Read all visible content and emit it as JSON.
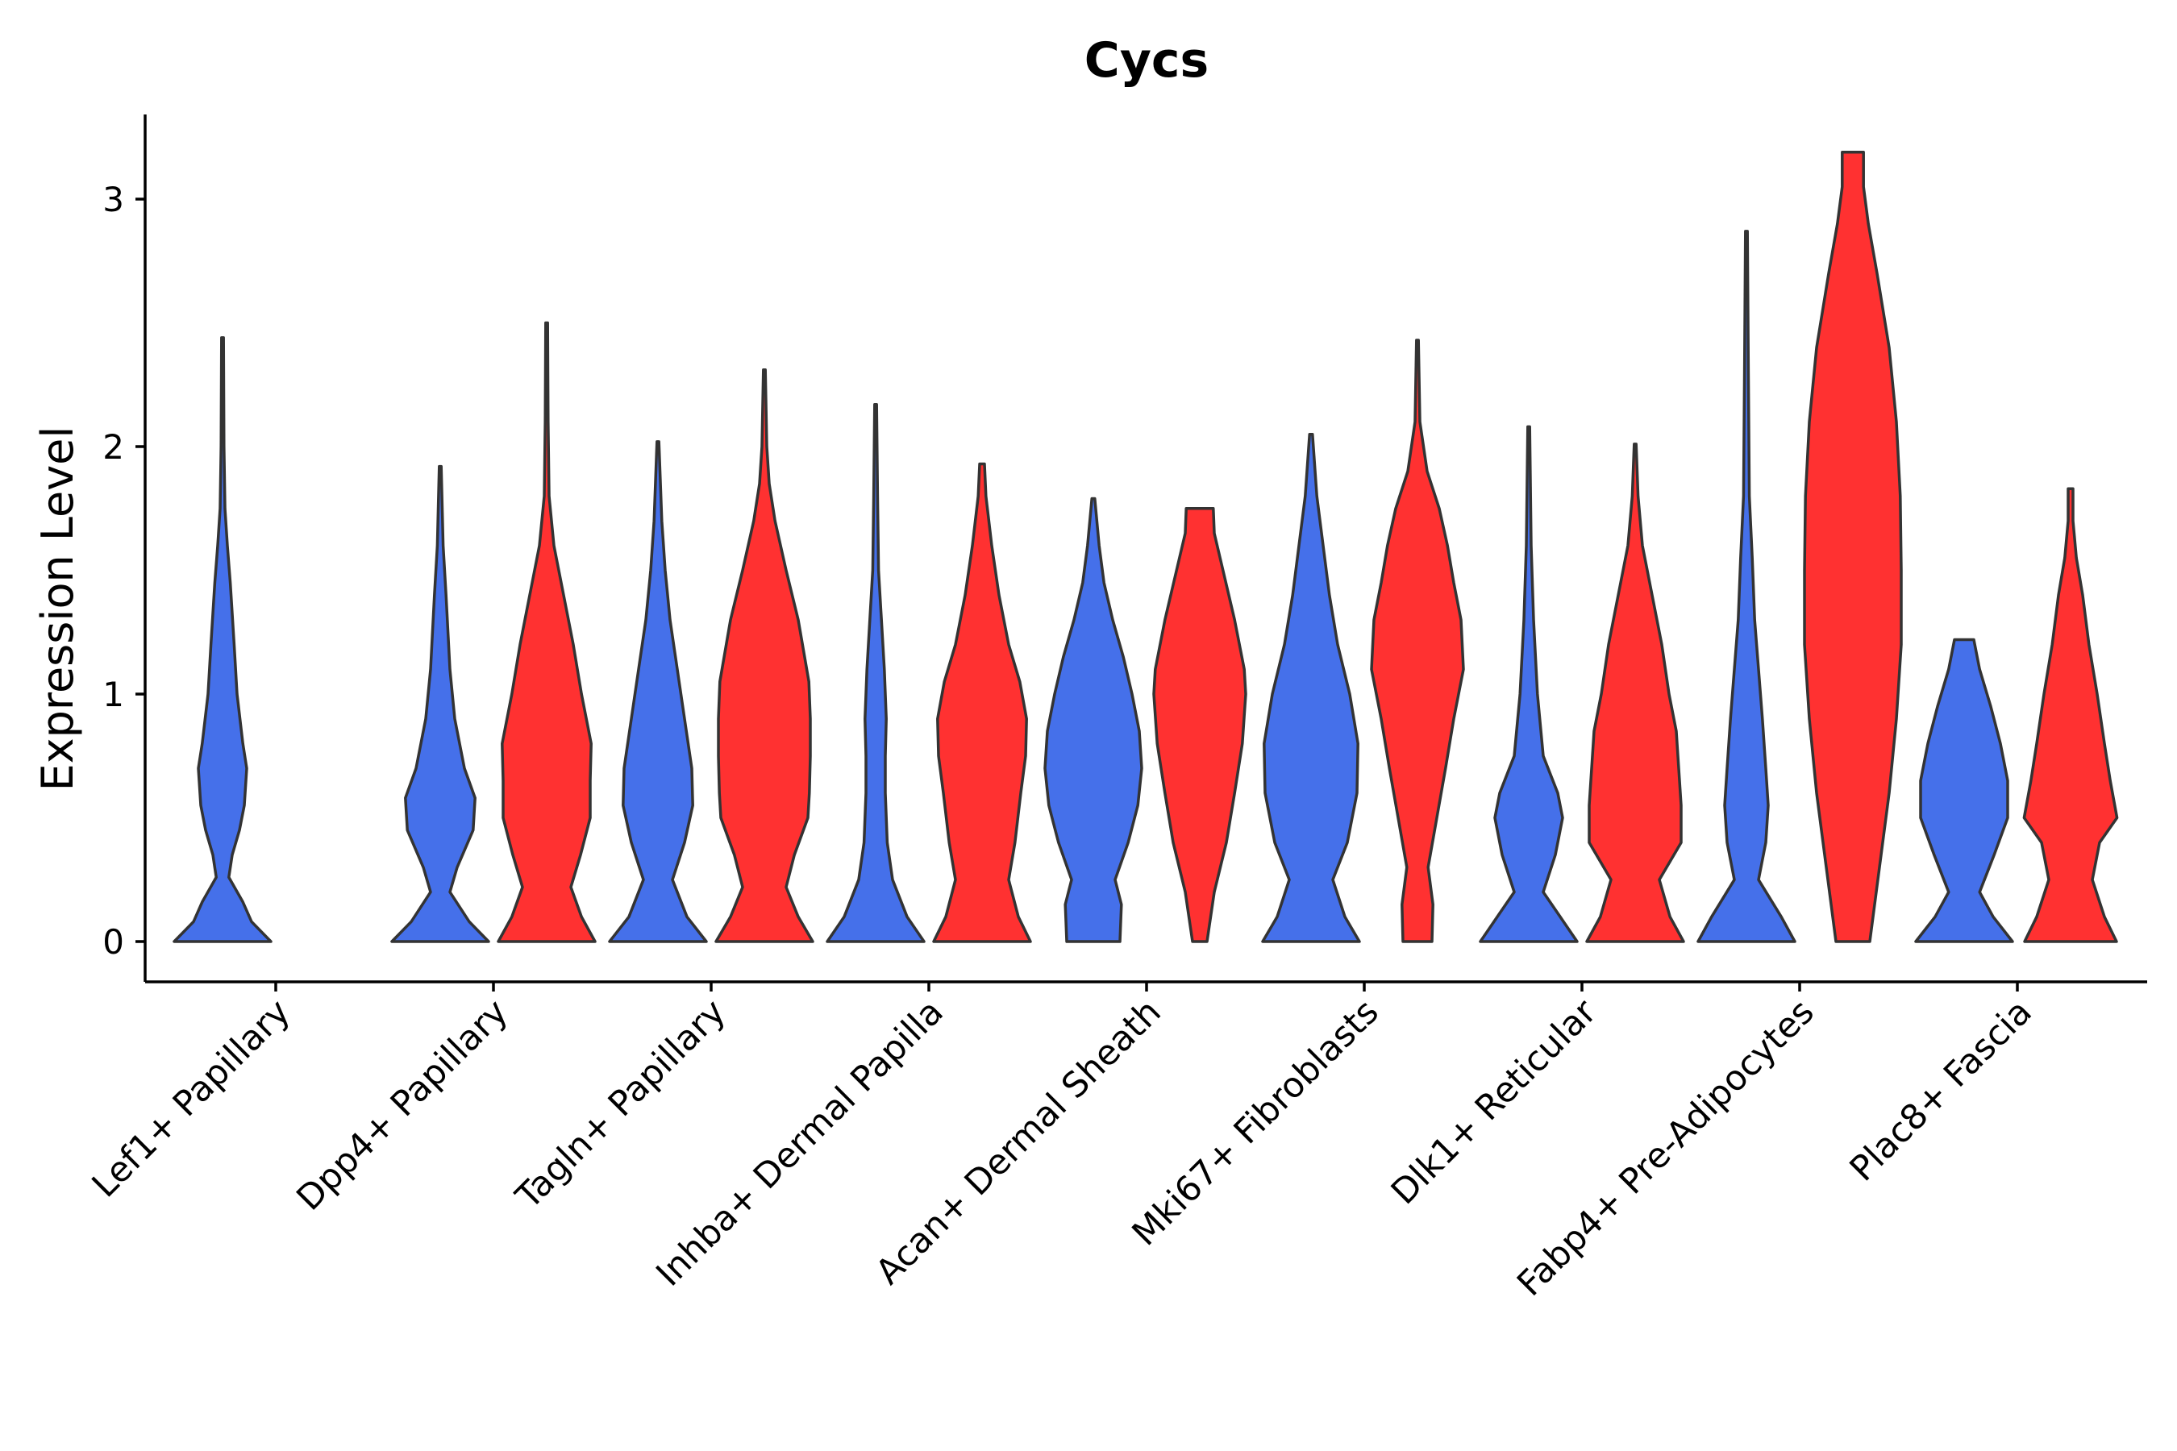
{
  "chart_data": {
    "type": "violin",
    "title": "Cycs",
    "xlabel": "",
    "ylabel": "Expression Level",
    "ylim": [
      -0.16,
      3.35
    ],
    "yticks": [
      0,
      1,
      2,
      3
    ],
    "categories": [
      "Lef1+ Papillary",
      "Dpp4+ Papillary",
      "Tagln+ Papillary",
      "Inhba+ Dermal Papilla",
      "Acan+ Dermal Sheath",
      "Mki67+ Fibroblasts",
      "Dlk1+ Reticular",
      "Fabp4+ Pre-Adipocytes",
      "Plac8+ Fascia"
    ],
    "series_colors": {
      "group_1": "#4570EA",
      "group_2": "#FF3131"
    },
    "violins": [
      {
        "category": 0,
        "group": "group_1",
        "max": 2.44,
        "profile": [
          [
            0.0,
            1.0
          ],
          [
            0.08,
            0.6
          ],
          [
            0.16,
            0.42
          ],
          [
            0.26,
            0.13
          ],
          [
            0.35,
            0.2
          ],
          [
            0.45,
            0.35
          ],
          [
            0.55,
            0.45
          ],
          [
            0.7,
            0.5
          ],
          [
            0.8,
            0.42
          ],
          [
            1.0,
            0.3
          ],
          [
            1.2,
            0.24
          ],
          [
            1.45,
            0.16
          ],
          [
            1.6,
            0.1
          ],
          [
            1.75,
            0.05
          ],
          [
            2.0,
            0.03
          ],
          [
            2.44,
            0.02
          ]
        ]
      },
      {
        "category": 1,
        "group": "group_1",
        "max": 1.92,
        "profile": [
          [
            0.0,
            1.0
          ],
          [
            0.08,
            0.6
          ],
          [
            0.2,
            0.2
          ],
          [
            0.3,
            0.35
          ],
          [
            0.45,
            0.68
          ],
          [
            0.58,
            0.72
          ],
          [
            0.7,
            0.5
          ],
          [
            0.9,
            0.3
          ],
          [
            1.1,
            0.2
          ],
          [
            1.4,
            0.12
          ],
          [
            1.6,
            0.06
          ],
          [
            1.92,
            0.02
          ]
        ]
      },
      {
        "category": 1,
        "group": "group_2",
        "max": 2.5,
        "profile": [
          [
            0.0,
            1.0
          ],
          [
            0.1,
            0.72
          ],
          [
            0.22,
            0.5
          ],
          [
            0.35,
            0.7
          ],
          [
            0.5,
            0.9
          ],
          [
            0.65,
            0.9
          ],
          [
            0.8,
            0.92
          ],
          [
            1.0,
            0.72
          ],
          [
            1.2,
            0.55
          ],
          [
            1.4,
            0.35
          ],
          [
            1.6,
            0.15
          ],
          [
            1.8,
            0.05
          ],
          [
            2.1,
            0.03
          ],
          [
            2.5,
            0.02
          ]
        ]
      },
      {
        "category": 2,
        "group": "group_1",
        "max": 2.02,
        "profile": [
          [
            0.0,
            1.0
          ],
          [
            0.1,
            0.6
          ],
          [
            0.25,
            0.3
          ],
          [
            0.4,
            0.55
          ],
          [
            0.55,
            0.72
          ],
          [
            0.7,
            0.7
          ],
          [
            0.9,
            0.55
          ],
          [
            1.1,
            0.4
          ],
          [
            1.3,
            0.25
          ],
          [
            1.5,
            0.15
          ],
          [
            1.7,
            0.08
          ],
          [
            2.02,
            0.02
          ]
        ]
      },
      {
        "category": 2,
        "group": "group_2",
        "max": 2.31,
        "profile": [
          [
            0.0,
            1.0
          ],
          [
            0.1,
            0.7
          ],
          [
            0.22,
            0.45
          ],
          [
            0.35,
            0.62
          ],
          [
            0.5,
            0.9
          ],
          [
            0.6,
            0.93
          ],
          [
            0.75,
            0.95
          ],
          [
            0.9,
            0.95
          ],
          [
            1.05,
            0.92
          ],
          [
            1.3,
            0.7
          ],
          [
            1.5,
            0.45
          ],
          [
            1.7,
            0.22
          ],
          [
            1.85,
            0.1
          ],
          [
            2.0,
            0.05
          ],
          [
            2.31,
            0.02
          ]
        ]
      },
      {
        "category": 3,
        "group": "group_1",
        "max": 2.17,
        "profile": [
          [
            0.0,
            1.0
          ],
          [
            0.1,
            0.65
          ],
          [
            0.25,
            0.35
          ],
          [
            0.4,
            0.24
          ],
          [
            0.6,
            0.2
          ],
          [
            0.75,
            0.2
          ],
          [
            0.9,
            0.22
          ],
          [
            1.1,
            0.18
          ],
          [
            1.3,
            0.12
          ],
          [
            1.5,
            0.06
          ],
          [
            1.8,
            0.04
          ],
          [
            2.17,
            0.02
          ]
        ]
      },
      {
        "category": 3,
        "group": "group_2",
        "max": 1.93,
        "profile": [
          [
            0.0,
            1.0
          ],
          [
            0.1,
            0.75
          ],
          [
            0.25,
            0.55
          ],
          [
            0.4,
            0.68
          ],
          [
            0.6,
            0.8
          ],
          [
            0.75,
            0.9
          ],
          [
            0.9,
            0.92
          ],
          [
            1.05,
            0.78
          ],
          [
            1.2,
            0.55
          ],
          [
            1.4,
            0.35
          ],
          [
            1.6,
            0.2
          ],
          [
            1.8,
            0.08
          ],
          [
            1.93,
            0.05
          ]
        ]
      },
      {
        "category": 4,
        "group": "group_1",
        "max": 1.79,
        "profile": [
          [
            0.0,
            0.55
          ],
          [
            0.15,
            0.58
          ],
          [
            0.25,
            0.45
          ],
          [
            0.4,
            0.72
          ],
          [
            0.55,
            0.92
          ],
          [
            0.7,
            1.0
          ],
          [
            0.85,
            0.95
          ],
          [
            1.0,
            0.8
          ],
          [
            1.15,
            0.62
          ],
          [
            1.3,
            0.4
          ],
          [
            1.45,
            0.22
          ],
          [
            1.6,
            0.12
          ],
          [
            1.79,
            0.03
          ]
        ]
      },
      {
        "category": 4,
        "group": "group_2",
        "max": 1.75,
        "profile": [
          [
            0.0,
            0.15
          ],
          [
            0.2,
            0.3
          ],
          [
            0.4,
            0.55
          ],
          [
            0.6,
            0.72
          ],
          [
            0.8,
            0.88
          ],
          [
            1.0,
            0.95
          ],
          [
            1.1,
            0.92
          ],
          [
            1.3,
            0.72
          ],
          [
            1.5,
            0.48
          ],
          [
            1.65,
            0.3
          ],
          [
            1.75,
            0.28
          ]
        ]
      },
      {
        "category": 5,
        "group": "group_1",
        "max": 2.05,
        "profile": [
          [
            0.0,
            1.0
          ],
          [
            0.1,
            0.7
          ],
          [
            0.25,
            0.45
          ],
          [
            0.4,
            0.75
          ],
          [
            0.6,
            0.95
          ],
          [
            0.8,
            0.97
          ],
          [
            1.0,
            0.8
          ],
          [
            1.2,
            0.55
          ],
          [
            1.4,
            0.38
          ],
          [
            1.6,
            0.25
          ],
          [
            1.8,
            0.12
          ],
          [
            2.05,
            0.03
          ]
        ]
      },
      {
        "category": 5,
        "group": "group_2",
        "max": 2.43,
        "profile": [
          [
            0.0,
            0.3
          ],
          [
            0.15,
            0.32
          ],
          [
            0.3,
            0.22
          ],
          [
            0.5,
            0.4
          ],
          [
            0.7,
            0.58
          ],
          [
            0.9,
            0.75
          ],
          [
            1.1,
            0.95
          ],
          [
            1.3,
            0.9
          ],
          [
            1.45,
            0.75
          ],
          [
            1.6,
            0.62
          ],
          [
            1.75,
            0.45
          ],
          [
            1.9,
            0.2
          ],
          [
            2.1,
            0.05
          ],
          [
            2.43,
            0.02
          ]
        ]
      },
      {
        "category": 6,
        "group": "group_1",
        "max": 2.08,
        "profile": [
          [
            0.0,
            1.0
          ],
          [
            0.1,
            0.65
          ],
          [
            0.2,
            0.3
          ],
          [
            0.35,
            0.55
          ],
          [
            0.5,
            0.7
          ],
          [
            0.6,
            0.6
          ],
          [
            0.75,
            0.3
          ],
          [
            1.0,
            0.18
          ],
          [
            1.3,
            0.1
          ],
          [
            1.6,
            0.05
          ],
          [
            2.08,
            0.02
          ]
        ]
      },
      {
        "category": 6,
        "group": "group_2",
        "max": 2.01,
        "profile": [
          [
            0.0,
            1.0
          ],
          [
            0.1,
            0.72
          ],
          [
            0.25,
            0.5
          ],
          [
            0.4,
            0.95
          ],
          [
            0.55,
            0.95
          ],
          [
            0.7,
            0.9
          ],
          [
            0.85,
            0.85
          ],
          [
            1.0,
            0.7
          ],
          [
            1.2,
            0.55
          ],
          [
            1.4,
            0.35
          ],
          [
            1.6,
            0.15
          ],
          [
            1.8,
            0.06
          ],
          [
            2.01,
            0.02
          ]
        ]
      },
      {
        "category": 7,
        "group": "group_1",
        "max": 2.87,
        "profile": [
          [
            0.0,
            1.0
          ],
          [
            0.1,
            0.72
          ],
          [
            0.25,
            0.25
          ],
          [
            0.4,
            0.4
          ],
          [
            0.55,
            0.45
          ],
          [
            0.7,
            0.4
          ],
          [
            0.9,
            0.33
          ],
          [
            1.1,
            0.25
          ],
          [
            1.3,
            0.17
          ],
          [
            1.55,
            0.12
          ],
          [
            1.8,
            0.06
          ],
          [
            2.3,
            0.04
          ],
          [
            2.87,
            0.02
          ]
        ]
      },
      {
        "category": 7,
        "group": "group_2",
        "max": 3.19,
        "profile": [
          [
            0.0,
            0.35
          ],
          [
            0.3,
            0.55
          ],
          [
            0.6,
            0.75
          ],
          [
            0.9,
            0.9
          ],
          [
            1.2,
            1.0
          ],
          [
            1.5,
            1.0
          ],
          [
            1.8,
            0.98
          ],
          [
            2.1,
            0.9
          ],
          [
            2.4,
            0.75
          ],
          [
            2.7,
            0.5
          ],
          [
            2.9,
            0.32
          ],
          [
            3.05,
            0.22
          ],
          [
            3.19,
            0.22
          ]
        ]
      },
      {
        "category": 8,
        "group": "group_1",
        "max": 1.22,
        "profile": [
          [
            0.0,
            1.0
          ],
          [
            0.1,
            0.6
          ],
          [
            0.2,
            0.32
          ],
          [
            0.35,
            0.62
          ],
          [
            0.5,
            0.9
          ],
          [
            0.65,
            0.9
          ],
          [
            0.8,
            0.75
          ],
          [
            0.95,
            0.55
          ],
          [
            1.1,
            0.32
          ],
          [
            1.22,
            0.2
          ]
        ]
      },
      {
        "category": 8,
        "group": "group_2",
        "max": 1.83,
        "profile": [
          [
            0.0,
            0.95
          ],
          [
            0.1,
            0.7
          ],
          [
            0.25,
            0.45
          ],
          [
            0.4,
            0.6
          ],
          [
            0.5,
            0.96
          ],
          [
            0.65,
            0.82
          ],
          [
            0.8,
            0.7
          ],
          [
            1.0,
            0.55
          ],
          [
            1.2,
            0.38
          ],
          [
            1.4,
            0.25
          ],
          [
            1.55,
            0.12
          ],
          [
            1.7,
            0.05
          ],
          [
            1.83,
            0.05
          ]
        ]
      }
    ]
  }
}
